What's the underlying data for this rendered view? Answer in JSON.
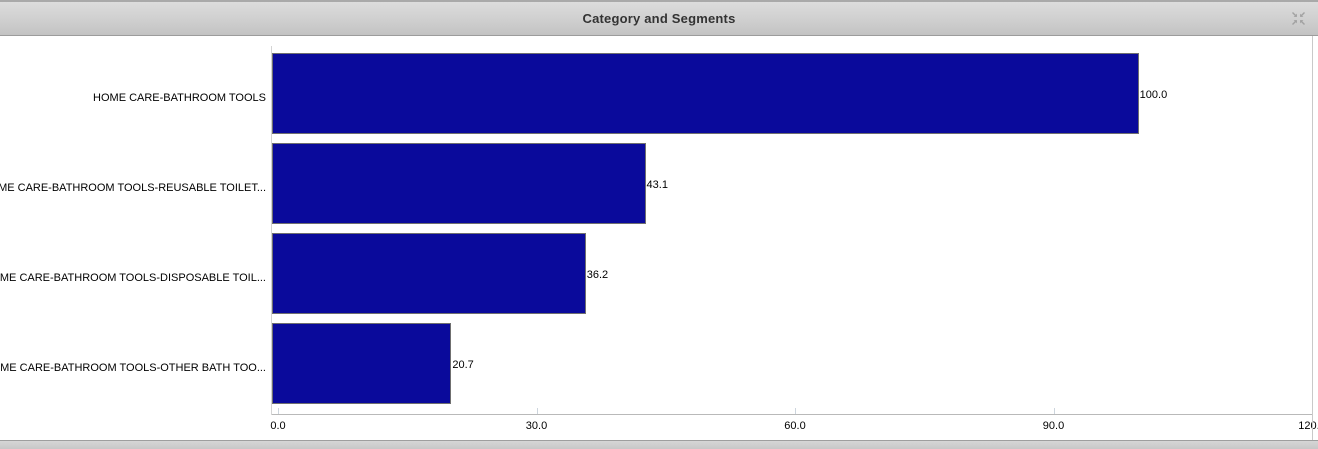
{
  "panel": {
    "title": "Category and Segments",
    "collapse_icon": "collapse-arrows-icon"
  },
  "colors": {
    "bar_fill": "#0a0a9b",
    "bar_border": "#6f6f6f",
    "header_background": "#cfcfcf",
    "header_text": "#333333",
    "axis_line": "#b9b9b9",
    "label_text": "#000000"
  },
  "chart_data": {
    "type": "bar",
    "orientation": "horizontal",
    "title": "Category and Segments",
    "categories": [
      "HOME CARE-BATHROOM TOOLS",
      "HOME CARE-BATHROOM TOOLS-REUSABLE TOILET...",
      "HOME CARE-BATHROOM TOOLS-DISPOSABLE TOIL...",
      "HOME CARE-BATHROOM TOOLS-OTHER BATH TOO..."
    ],
    "values": [
      100.0,
      43.1,
      36.2,
      20.7
    ],
    "value_labels": [
      "100.0",
      "43.1",
      "36.2",
      "20.7"
    ],
    "x_ticks": [
      "0.0",
      "30.0",
      "60.0",
      "90.0",
      "120.0"
    ],
    "x_tick_values": [
      0,
      30,
      60,
      90,
      120
    ],
    "xlim": [
      0,
      120
    ],
    "xlabel": "",
    "ylabel": "",
    "grid": false,
    "legend": null,
    "value_labels_shown": true
  }
}
